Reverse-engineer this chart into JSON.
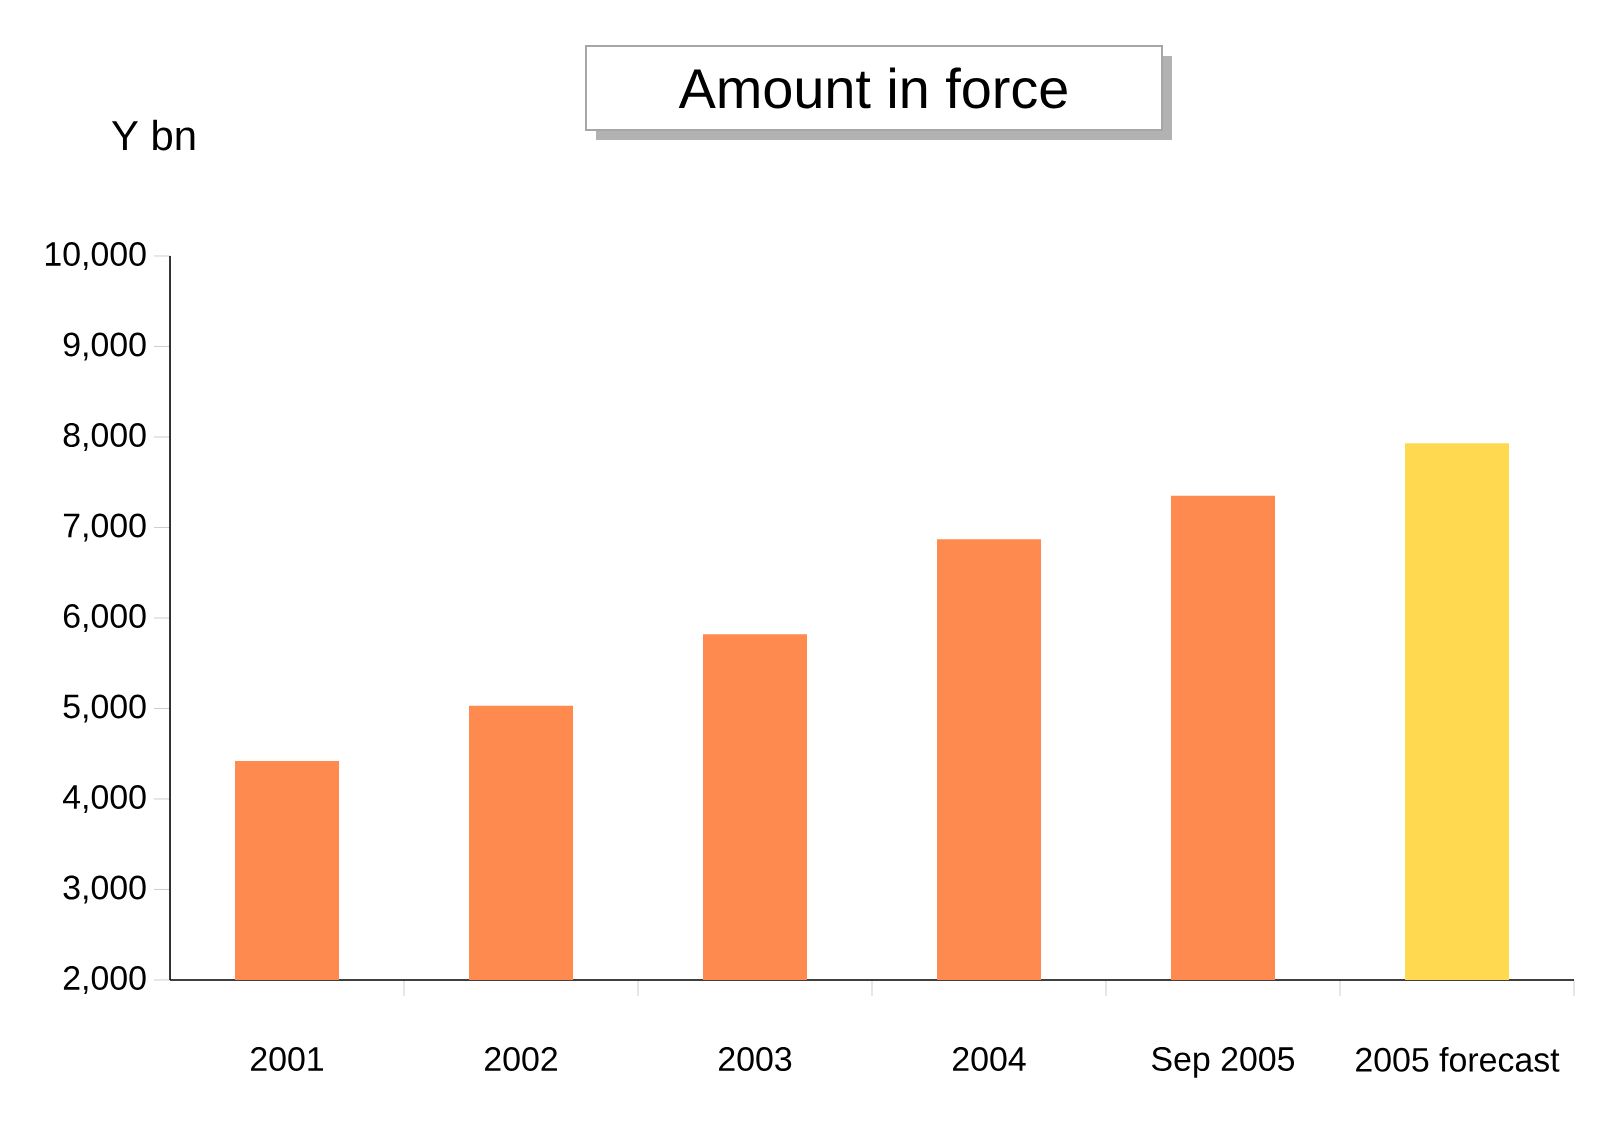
{
  "chart_data": {
    "type": "bar",
    "title": "Amount in force",
    "ylabel": "Y bn",
    "categories": [
      "2001",
      "2002",
      "2003",
      "2004",
      "Sep 2005",
      "2005 forecast"
    ],
    "values": [
      4420,
      5030,
      5820,
      6870,
      7350,
      7930
    ],
    "colors": [
      "#ff8a4f",
      "#ff8a4f",
      "#ff8a4f",
      "#ff8a4f",
      "#ff8a4f",
      "#ffd94f"
    ],
    "ylim": [
      2000,
      10000
    ],
    "yticks": [
      {
        "value": 2000,
        "label": "2,000"
      },
      {
        "value": 3000,
        "label": "3,000"
      },
      {
        "value": 4000,
        "label": "4,000"
      },
      {
        "value": 5000,
        "label": "5,000"
      },
      {
        "value": 6000,
        "label": "6,000"
      },
      {
        "value": 7000,
        "label": "7,000"
      },
      {
        "value": 8000,
        "label": "8,000"
      },
      {
        "value": 9000,
        "label": "9,000"
      },
      {
        "value": 10000,
        "label": "10,000"
      }
    ],
    "grid": false
  }
}
